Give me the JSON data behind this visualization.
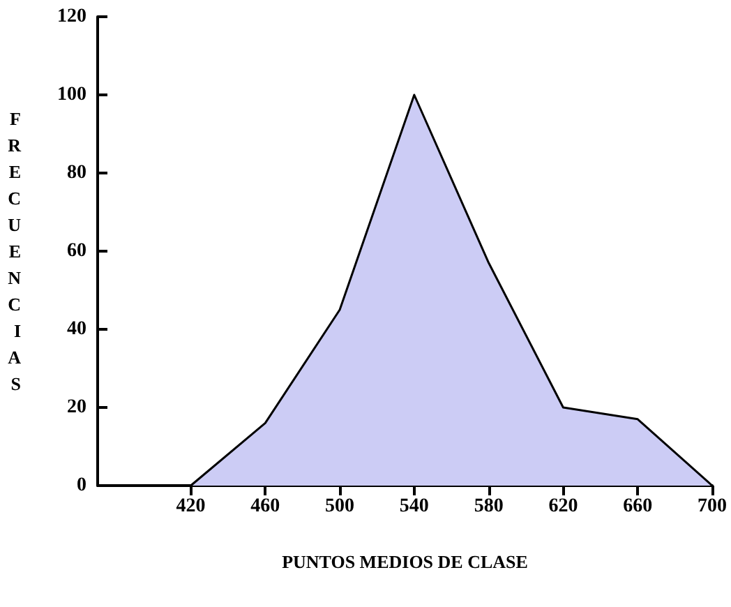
{
  "chart_data": {
    "type": "area",
    "xlabel": "PUNTOS MEDIOS DE CLASE",
    "ylabel": "FRECUENCIAS",
    "x": [
      420,
      460,
      500,
      540,
      580,
      620,
      660,
      700
    ],
    "series": [
      {
        "color": "#ccccf5",
        "values": [
          0,
          16,
          45,
          100,
          57,
          20,
          17,
          0
        ]
      }
    ],
    "xlim": [
      370,
      700
    ],
    "xticks": [
      420,
      460,
      500,
      540,
      580,
      620,
      660,
      700
    ],
    "ylim": [
      0,
      120
    ],
    "yticks": [
      0,
      20,
      40,
      60,
      80,
      100,
      120
    ],
    "grid": false,
    "marker": "none",
    "line_style": "solid"
  }
}
